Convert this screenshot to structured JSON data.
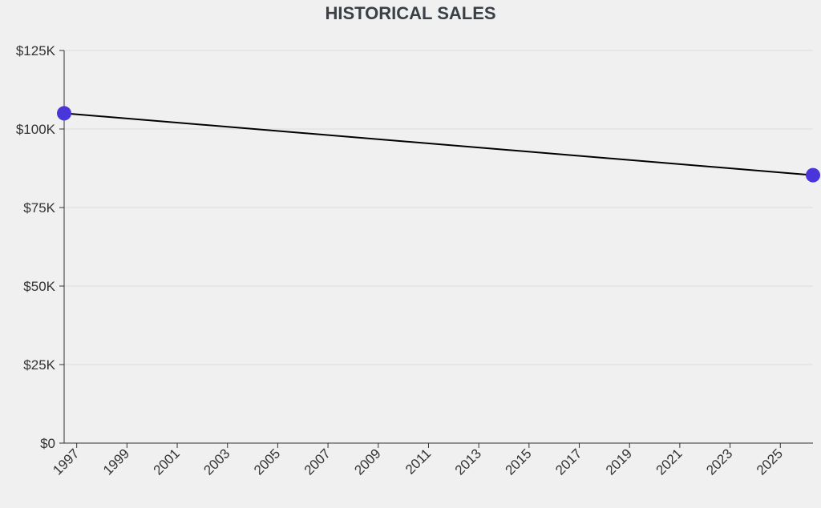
{
  "chart_data": {
    "type": "line",
    "title": "HISTORICAL SALES",
    "xlabel": "",
    "ylabel": "",
    "x_ticks": [
      "1997",
      "1999",
      "2001",
      "2003",
      "2005",
      "2007",
      "2009",
      "2011",
      "2013",
      "2015",
      "2017",
      "2019",
      "2021",
      "2023",
      "2025"
    ],
    "y_ticks": [
      "$0",
      "$25K",
      "$50K",
      "$75K",
      "$100K",
      "$125K"
    ],
    "ylim": [
      0,
      125000
    ],
    "xlim": [
      1996.5,
      2026.3
    ],
    "grid": "horizontal",
    "series": [
      {
        "points": [
          {
            "x": 1996.5,
            "y": 105000
          },
          {
            "x": 2026.3,
            "y": 85300
          }
        ],
        "line_color": "#000000",
        "marker_color": "#4a35db"
      }
    ]
  }
}
